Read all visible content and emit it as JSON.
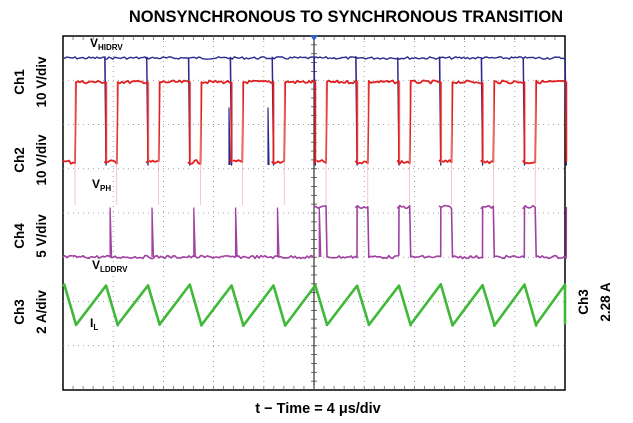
{
  "chart_data": {
    "type": "line",
    "title": "NONSYNCHRONOUS TO SYNCHRONOUS TRANSITION",
    "xlabel": "t − Time = 4 μs/div",
    "x_scale": "4 μs/div",
    "grid": true,
    "channels": [
      {
        "id": "ch1",
        "name": "Ch1",
        "scale": "10 V/div",
        "signal": "V",
        "subscript": "HIDRV",
        "color": "#2a2a8c"
      },
      {
        "id": "ch2",
        "name": "Ch2",
        "scale": "10 V/div",
        "signal": "V",
        "subscript": "PH",
        "color": "#e02020"
      },
      {
        "id": "ch4",
        "name": "Ch4",
        "scale": "5 V/div",
        "signal": "V",
        "subscript": "LDDRV",
        "color": "#a040a0"
      },
      {
        "id": "ch3",
        "name": "Ch3",
        "scale": "2 A/div",
        "signal": "I",
        "subscript": "L",
        "color": "#40b838"
      }
    ],
    "right_annotation": {
      "channel": "Ch3",
      "value": "2.28 A"
    },
    "phases": [
      "nonsynchronous",
      "synchronous"
    ],
    "switching_cycles_per_phase": 6
  }
}
